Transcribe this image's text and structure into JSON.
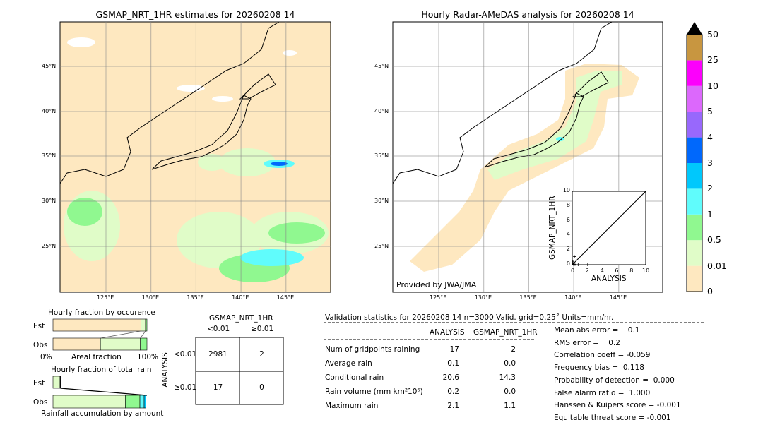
{
  "left_map": {
    "title": "GSMAP_NRT_1HR estimates for 20260208 14",
    "lat_ticks": [
      "45°N",
      "40°N",
      "35°N",
      "30°N",
      "25°N"
    ],
    "lon_ticks": [
      "125°E",
      "130°E",
      "135°E",
      "140°E",
      "145°E"
    ]
  },
  "right_map": {
    "title": "Hourly Radar-AMeDAS analysis for 20260208 14",
    "lat_ticks": [
      "45°N",
      "40°N",
      "35°N",
      "30°N",
      "25°N"
    ],
    "lon_ticks": [
      "125°E",
      "130°E",
      "135°E",
      "140°E",
      "145°E"
    ],
    "credit": "Provided by JWA/JMA"
  },
  "inset": {
    "xlabel": "ANALYSIS",
    "ylabel": "GSMAP_NRT_1HR",
    "ticks": [
      "0",
      "2",
      "4",
      "6",
      "8",
      "10"
    ]
  },
  "colorbar": {
    "labels": [
      "0",
      "0.01",
      "0.5",
      "1",
      "2",
      "3",
      "4",
      "5",
      "10",
      "25",
      "50"
    ],
    "colors": [
      "#fee8c0",
      "#e0fcc8",
      "#90f890",
      "#60fcfc",
      "#00c8fc",
      "#0068fc",
      "#9868fc",
      "#dc68fc",
      "#fc00fc",
      "#c89640"
    ],
    "extend_color": "#000000"
  },
  "chart_data": [
    {
      "type": "bar",
      "title": "Hourly fraction by occurence",
      "xlabel": "Areal fraction",
      "x_tick_labels": [
        "0%",
        "100%"
      ],
      "categories": [
        "Est",
        "Obs"
      ],
      "series": [
        {
          "values_pct": [
            93.5,
            50.5
          ]
        },
        {
          "values_pct": [
            5.0,
            42.5
          ]
        },
        {
          "values_pct": [
            1.5,
            7.0
          ]
        }
      ]
    },
    {
      "type": "bar",
      "title": "Hourly fraction of total rain",
      "xlabel": "Rainfall accumulation by amount",
      "categories": [
        "Est",
        "Obs"
      ],
      "series": [
        {
          "values_pct": [
            7.5,
            77.0
          ]
        },
        {
          "values_pct": [
            0.5,
            15.5
          ]
        },
        {
          "values_pct": [
            0,
            4.5
          ]
        },
        {
          "values_pct": [
            0,
            2.0
          ]
        }
      ]
    },
    {
      "type": "scatter",
      "xlabel": "ANALYSIS",
      "ylabel": "GSMAP_NRT_1HR",
      "xlim": [
        0,
        10
      ],
      "ylim": [
        0,
        10
      ],
      "points": [
        [
          0.1,
          0.1
        ],
        [
          0.2,
          0.0
        ],
        [
          0.3,
          0.05
        ],
        [
          0.5,
          0.0
        ],
        [
          0.8,
          0.0
        ],
        [
          1.2,
          0.0
        ],
        [
          2.1,
          0.0
        ],
        [
          0.3,
          1.1
        ],
        [
          0.1,
          0.4
        ]
      ]
    }
  ],
  "contingency": {
    "col_title": "GSMAP_NRT_1HR",
    "row_title": "ANALYSIS",
    "col_labels": [
      "<0.01",
      "≥0.01"
    ],
    "row_labels": [
      "<0.01",
      "≥0.01"
    ],
    "cells": [
      [
        "2981",
        "2"
      ],
      [
        "17",
        "0"
      ]
    ]
  },
  "stats": {
    "header": "Validation statistics for 20260208 14  n=3000 Valid. grid=0.25˚ Units=mm/hr.",
    "col_analysis": "ANALYSIS",
    "col_gsmap": "GSMAP_NRT_1HR",
    "rows": [
      {
        "label": "Num of gridpoints raining",
        "analysis": "17",
        "gsmap": "2"
      },
      {
        "label": "Average rain",
        "analysis": "0.1",
        "gsmap": "0.0"
      },
      {
        "label": "Conditional rain",
        "analysis": "20.6",
        "gsmap": "14.3"
      },
      {
        "label": "Rain volume (mm km²10⁶)",
        "analysis": "0.2",
        "gsmap": "0.0"
      },
      {
        "label": "Maximum rain",
        "analysis": "2.1",
        "gsmap": "1.1"
      }
    ],
    "scores": [
      "Mean abs error =    0.1",
      "RMS error =    0.2",
      "Correlation coeff = -0.059",
      "Frequency bias =  0.118",
      "Probability of detection =  0.000",
      "False alarm ratio =  1.000",
      "Hanssen & Kuipers score = -0.001",
      "Equitable threat score = -0.001"
    ]
  }
}
